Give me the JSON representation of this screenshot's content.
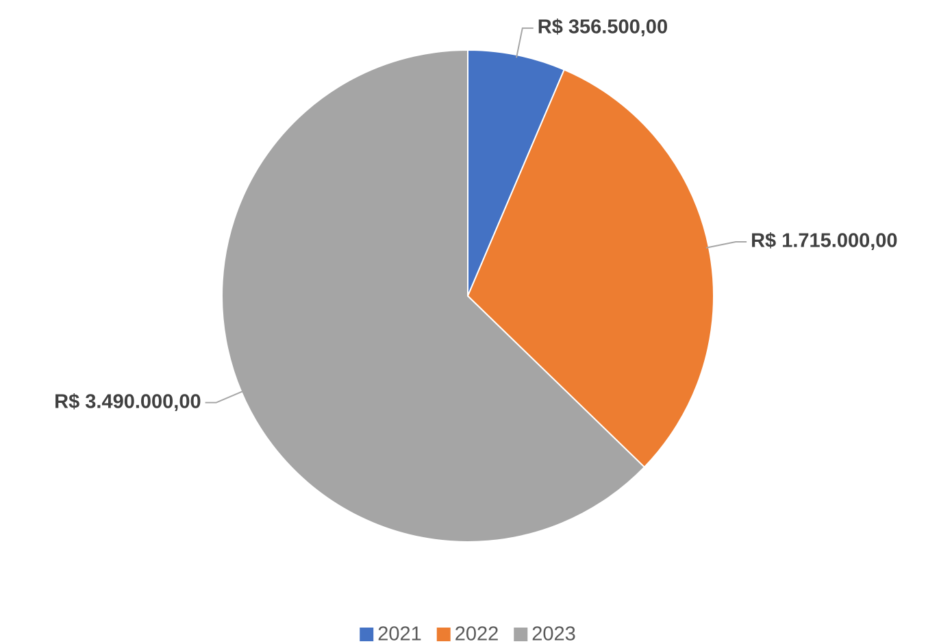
{
  "chart_data": {
    "type": "pie",
    "categories": [
      "2021",
      "2022",
      "2023"
    ],
    "values": [
      356500,
      1715000,
      3490000
    ],
    "value_labels": [
      "R$ 356.500,00",
      "R$ 1.715.000,00",
      "R$ 3.490.000,00"
    ],
    "colors": [
      "#4472c4",
      "#ed7d31",
      "#a5a5a5"
    ],
    "legend": "bottom"
  }
}
